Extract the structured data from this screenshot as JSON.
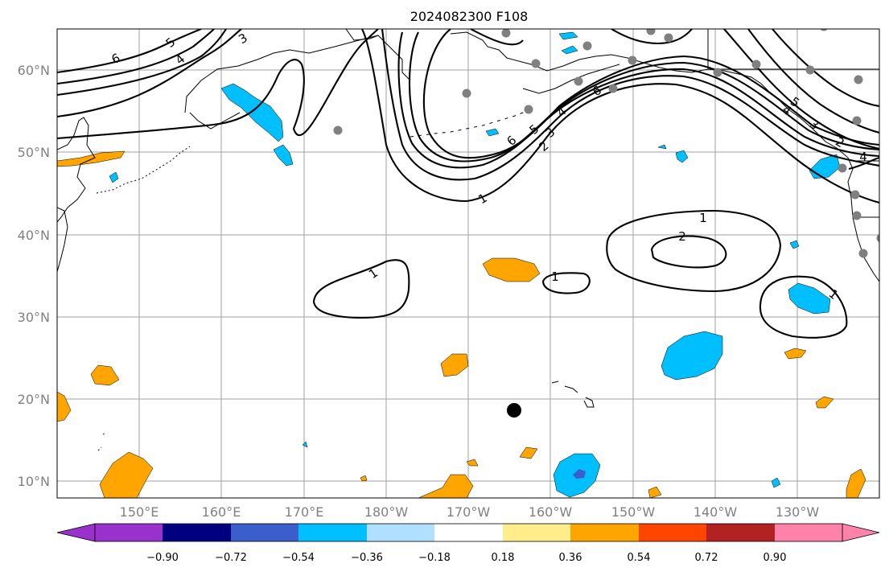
{
  "title": "2024082300 F108",
  "axes": {
    "lat_ticks": [
      "60°N",
      "50°N",
      "40°N",
      "30°N",
      "20°N",
      "10°N"
    ],
    "lon_ticks": [
      "150°E",
      "160°E",
      "170°E",
      "180°W",
      "170°W",
      "160°W",
      "150°W",
      "140°W",
      "130°W"
    ],
    "lat_range": [
      8,
      65
    ],
    "lon_range_east": [
      140,
      240
    ],
    "grid": true
  },
  "colorbar": {
    "colors": [
      "#9932cc",
      "#000080",
      "#3a5fcd",
      "#00bfff",
      "#b0e0ff",
      "#ffffff",
      "#ffec8b",
      "#ffa500",
      "#ff4500",
      "#b22222",
      "#ff82ab"
    ],
    "tick_labels": [
      "−0.90",
      "−0.72",
      "−0.54",
      "−0.36",
      "−0.18",
      "0.18",
      "0.36",
      "0.54",
      "0.72",
      "0.90"
    ],
    "extend": "both"
  },
  "contour_labels": [
    "6",
    "5",
    "4",
    "3",
    "6",
    "5",
    "4",
    "3",
    "2",
    "6",
    "5",
    "4",
    "3",
    "2",
    "1",
    "1",
    "2",
    "1",
    "1",
    "1",
    "4"
  ],
  "marker": {
    "name": "forecast-point",
    "lat": 18.6,
    "lon_east": 195.2,
    "color": "#000000"
  }
}
